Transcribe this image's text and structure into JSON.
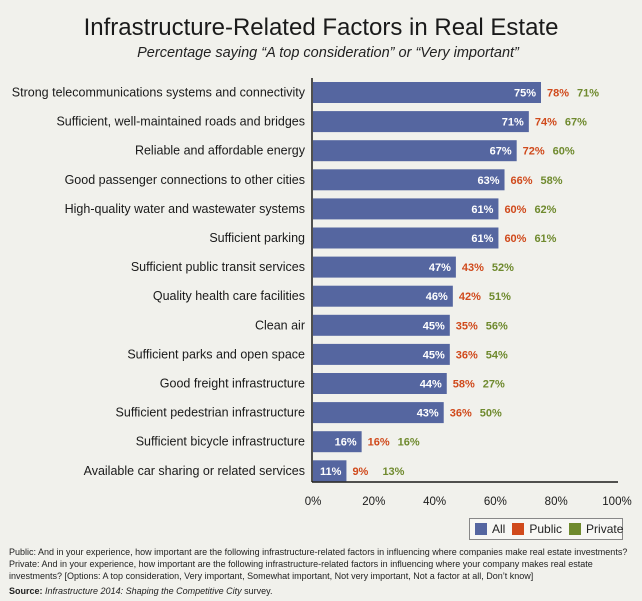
{
  "chart_data": {
    "type": "bar",
    "orientation": "horizontal",
    "title": "Infrastructure-Related Factors in Real Estate",
    "subtitle": "Percentage saying “A top consideration” or “Very important”",
    "categories": [
      "Strong telecommunications systems and connectivity",
      "Sufficient, well-maintained roads and bridges",
      "Reliable and affordable energy",
      "Good passenger connections to other cities",
      "High-quality water and wastewater systems",
      "Sufficient parking",
      "Sufficient public transit services",
      "Quality health care facilities",
      "Clean air",
      "Sufficient parks and open space",
      "Good freight infrastructure",
      "Sufficient pedestrian infrastructure",
      "Sufficient bicycle infrastructure",
      "Available car sharing or related services"
    ],
    "series": [
      {
        "name": "All",
        "color": "#5566a0",
        "values": [
          75,
          71,
          67,
          63,
          61,
          61,
          47,
          46,
          45,
          45,
          44,
          43,
          16,
          11
        ]
      },
      {
        "name": "Public",
        "color": "#d04a1c",
        "values": [
          78,
          74,
          72,
          66,
          60,
          60,
          43,
          42,
          35,
          36,
          58,
          36,
          16,
          9
        ]
      },
      {
        "name": "Private",
        "color": "#6f8a2e",
        "values": [
          71,
          67,
          60,
          58,
          62,
          61,
          52,
          51,
          56,
          54,
          27,
          50,
          16,
          13
        ]
      }
    ],
    "xlim": [
      0,
      100
    ],
    "xticks": [
      "0%",
      "20%",
      "40%",
      "60%",
      "80%",
      "100%"
    ],
    "xlabel": "",
    "ylabel": "",
    "grid": false,
    "legend_position": "bottom-right",
    "value_suffix": "%"
  },
  "legend": {
    "all": "All",
    "public": "Public",
    "private": "Private"
  },
  "footnote": "Public: And in your experience, how important are the following infrastructure-related factors in influencing where companies make real estate investments? Private: And in your experience, how important are the following infrastructure-related factors in influencing where your company makes real estate investments? [Options: A top consideration, Very important, Somewhat important, Not very important, Not a factor at all, Don’t know]",
  "source": {
    "label": "Source:",
    "title": "Infrastructure 2014: Shaping the Competitive City",
    "suffix": " survey."
  }
}
